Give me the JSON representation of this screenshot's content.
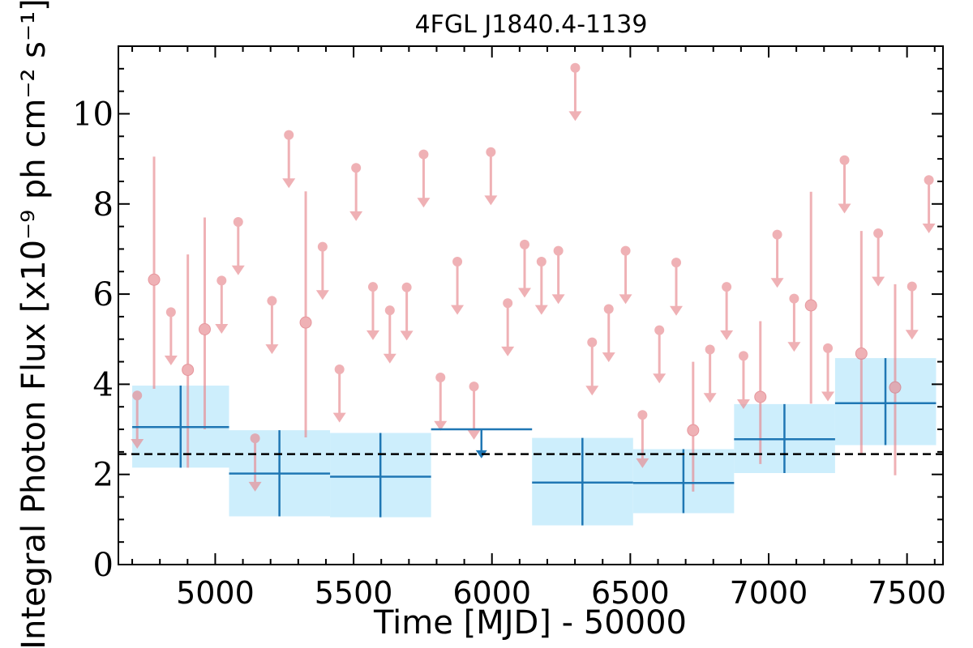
{
  "chart_data": {
    "type": "scatter",
    "title": "4FGL J1840.4-1139",
    "xlabel": "Time [MJD] - 50000",
    "ylabel": "Integral Photon Flux [x10⁻⁹ ph cm⁻² s⁻¹]",
    "xlim": [
      4650,
      7630
    ],
    "ylim": [
      0,
      11.5
    ],
    "x_ticks": [
      "5000",
      "5500",
      "6000",
      "6500",
      "7000",
      "7500"
    ],
    "x_tick_values": [
      5000,
      5500,
      6000,
      6500,
      7000,
      7500
    ],
    "y_ticks": [
      "0",
      "2",
      "4",
      "6",
      "8",
      "10"
    ],
    "y_tick_values": [
      0,
      2,
      4,
      6,
      8,
      10
    ],
    "grid": false,
    "colors": {
      "short_bins": "#e8888f",
      "long_bins": "#1f77b4",
      "long_band": "#cdeefc",
      "average_line": "#000000"
    },
    "average_flux": 2.45,
    "long_bins": [
      {
        "x_start": 4700,
        "x_end": 5050,
        "x": 4875,
        "flux": 3.05,
        "flux_low": 2.15,
        "flux_high": 3.97,
        "upper_limit": false
      },
      {
        "x_start": 5050,
        "x_end": 5415,
        "x": 5232,
        "flux": 2.02,
        "flux_low": 1.07,
        "flux_high": 2.98,
        "upper_limit": false
      },
      {
        "x_start": 5415,
        "x_end": 5780,
        "x": 5597,
        "flux": 1.95,
        "flux_low": 1.05,
        "flux_high": 2.92,
        "upper_limit": false
      },
      {
        "x_start": 5780,
        "x_end": 6145,
        "x": 5962,
        "flux": 3.0,
        "upper_limit": true
      },
      {
        "x_start": 6145,
        "x_end": 6510,
        "x": 6327,
        "flux": 1.82,
        "flux_low": 0.87,
        "flux_high": 2.81,
        "upper_limit": false
      },
      {
        "x_start": 6510,
        "x_end": 6875,
        "x": 6692,
        "flux": 1.81,
        "flux_low": 1.14,
        "flux_high": 2.56,
        "upper_limit": false
      },
      {
        "x_start": 6875,
        "x_end": 7240,
        "x": 7057,
        "flux": 2.78,
        "flux_low": 2.03,
        "flux_high": 3.56,
        "upper_limit": false
      },
      {
        "x_start": 7240,
        "x_end": 7605,
        "x": 7422,
        "flux": 3.58,
        "flux_low": 2.65,
        "flux_high": 4.58,
        "upper_limit": false
      }
    ],
    "short_bins": [
      {
        "x": 4718,
        "flux": 3.75,
        "upper_limit": true
      },
      {
        "x": 4779,
        "flux": 6.32,
        "flux_low": 3.9,
        "flux_high": 9.05,
        "upper_limit": false
      },
      {
        "x": 4840,
        "flux": 5.6,
        "upper_limit": true
      },
      {
        "x": 4901,
        "flux": 4.32,
        "flux_low": 2.15,
        "flux_high": 6.88,
        "upper_limit": false
      },
      {
        "x": 4962,
        "flux": 5.22,
        "flux_low": 3.0,
        "flux_high": 7.7,
        "upper_limit": false
      },
      {
        "x": 5023,
        "flux": 6.3,
        "upper_limit": true
      },
      {
        "x": 5083,
        "flux": 7.6,
        "upper_limit": true
      },
      {
        "x": 5144,
        "flux": 2.8,
        "upper_limit": true
      },
      {
        "x": 5205,
        "flux": 5.85,
        "upper_limit": true
      },
      {
        "x": 5266,
        "flux": 9.53,
        "upper_limit": true
      },
      {
        "x": 5327,
        "flux": 5.37,
        "flux_low": 2.82,
        "flux_high": 8.28,
        "upper_limit": false
      },
      {
        "x": 5388,
        "flux": 7.05,
        "upper_limit": true
      },
      {
        "x": 5449,
        "flux": 4.33,
        "upper_limit": true
      },
      {
        "x": 5509,
        "flux": 8.8,
        "upper_limit": true
      },
      {
        "x": 5570,
        "flux": 6.16,
        "upper_limit": true
      },
      {
        "x": 5631,
        "flux": 5.64,
        "upper_limit": true
      },
      {
        "x": 5692,
        "flux": 6.15,
        "upper_limit": true
      },
      {
        "x": 5753,
        "flux": 9.1,
        "upper_limit": true
      },
      {
        "x": 5814,
        "flux": 4.15,
        "upper_limit": true
      },
      {
        "x": 5875,
        "flux": 6.72,
        "upper_limit": true
      },
      {
        "x": 5935,
        "flux": 3.95,
        "upper_limit": true
      },
      {
        "x": 5996,
        "flux": 9.15,
        "upper_limit": true
      },
      {
        "x": 6057,
        "flux": 5.8,
        "upper_limit": true
      },
      {
        "x": 6118,
        "flux": 7.1,
        "upper_limit": true
      },
      {
        "x": 6179,
        "flux": 6.72,
        "upper_limit": true
      },
      {
        "x": 6240,
        "flux": 6.96,
        "upper_limit": true
      },
      {
        "x": 6301,
        "flux": 11.02,
        "upper_limit": true
      },
      {
        "x": 6362,
        "flux": 4.93,
        "upper_limit": true
      },
      {
        "x": 6422,
        "flux": 5.67,
        "upper_limit": true
      },
      {
        "x": 6483,
        "flux": 6.96,
        "upper_limit": true
      },
      {
        "x": 6544,
        "flux": 3.32,
        "upper_limit": true
      },
      {
        "x": 6605,
        "flux": 5.2,
        "upper_limit": true
      },
      {
        "x": 6666,
        "flux": 6.7,
        "upper_limit": true
      },
      {
        "x": 6727,
        "flux": 2.98,
        "flux_low": 1.62,
        "flux_high": 4.5,
        "upper_limit": false
      },
      {
        "x": 6788,
        "flux": 4.77,
        "upper_limit": true
      },
      {
        "x": 6848,
        "flux": 6.16,
        "upper_limit": true
      },
      {
        "x": 6909,
        "flux": 4.63,
        "upper_limit": true
      },
      {
        "x": 6970,
        "flux": 3.72,
        "flux_low": 2.23,
        "flux_high": 5.4,
        "upper_limit": false
      },
      {
        "x": 7031,
        "flux": 7.32,
        "upper_limit": true
      },
      {
        "x": 7092,
        "flux": 5.9,
        "upper_limit": true
      },
      {
        "x": 7153,
        "flux": 5.75,
        "flux_low": 3.57,
        "flux_high": 8.27,
        "upper_limit": false
      },
      {
        "x": 7214,
        "flux": 4.8,
        "upper_limit": true
      },
      {
        "x": 7274,
        "flux": 8.97,
        "upper_limit": true
      },
      {
        "x": 7335,
        "flux": 4.68,
        "flux_low": 2.45,
        "flux_high": 7.4,
        "upper_limit": false
      },
      {
        "x": 7396,
        "flux": 7.35,
        "upper_limit": true
      },
      {
        "x": 7457,
        "flux": 3.93,
        "flux_low": 1.98,
        "flux_high": 6.22,
        "upper_limit": false
      },
      {
        "x": 7518,
        "flux": 6.17,
        "upper_limit": true
      },
      {
        "x": 7579,
        "flux": 8.53,
        "upper_limit": true
      }
    ]
  }
}
